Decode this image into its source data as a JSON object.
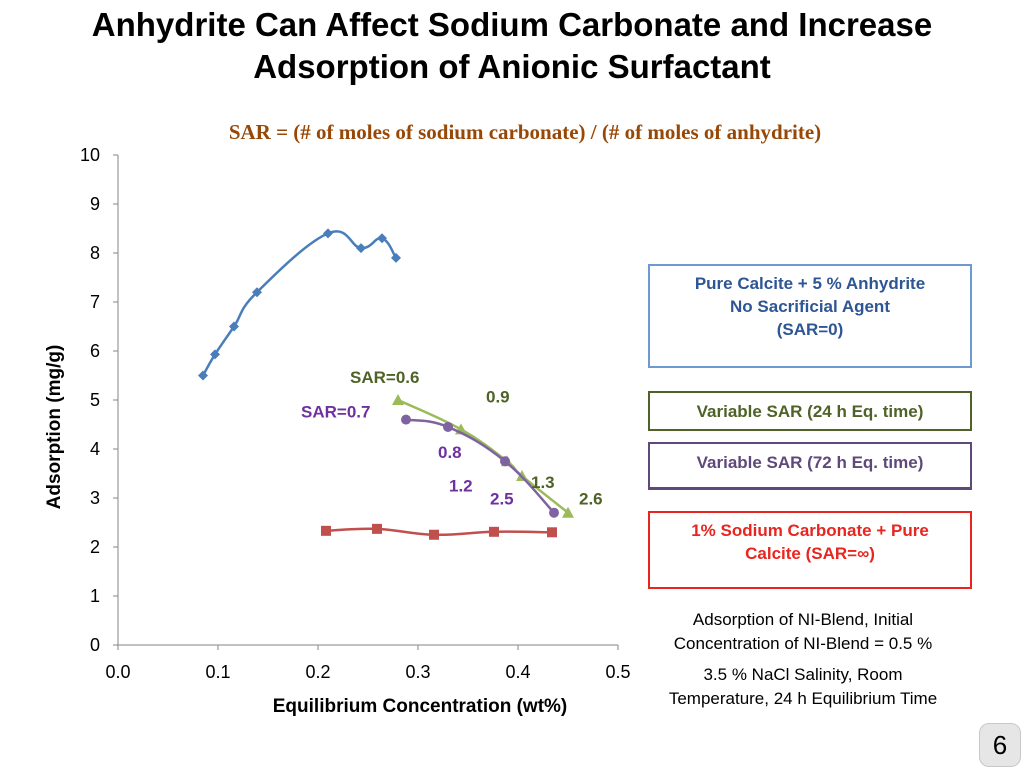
{
  "slide": {
    "title_line1": "Anhydrite Can Affect Sodium Carbonate and Increase",
    "title_line2": "Adsorption of Anionic Surfactant",
    "sar_formula": "SAR = (# of moles of sodium carbonate) / (# of moles of anhydrite)",
    "page_number": "6"
  },
  "legend": {
    "calcite_line1": "Pure Calcite + 5 % Anhydrite",
    "calcite_line2": "No Sacrificial Agent",
    "calcite_line3": "(SAR=0)",
    "variable_24h": "Variable SAR (24 h Eq. time)",
    "variable_72h": "Variable SAR (72 h Eq. time)",
    "na2co3_line1": "1% Sodium Carbonate + Pure",
    "na2co3_line2": "Calcite (SAR=∞)"
  },
  "notes": {
    "line1": "Adsorption of NI-Blend, Initial",
    "line2": "Concentration of NI-Blend = 0.5 %",
    "line3": "3.5 % NaCl Salinity, Room",
    "line4": "Temperature, 24 h Equilibrium Time"
  },
  "chart_data": {
    "type": "scatter",
    "xlabel": "Equilibrium Concentration (wt%)",
    "ylabel": "Adsorption (mg/g)",
    "xlim": [
      0,
      0.5
    ],
    "ylim": [
      0,
      10
    ],
    "x_ticks": [
      "0.0",
      "0.1",
      "0.2",
      "0.3",
      "0.4",
      "0.5"
    ],
    "y_ticks": [
      "0",
      "1",
      "2",
      "3",
      "4",
      "5",
      "6",
      "7",
      "8",
      "9",
      "10"
    ],
    "grid": false,
    "series": [
      {
        "name": "Pure Calcite + 5 % Anhydrite No Sacrificial Agent (SAR=0)",
        "color": "#4a7ebb",
        "marker": "diamond",
        "x": [
          0.085,
          0.097,
          0.116,
          0.139,
          0.21,
          0.243,
          0.264,
          0.278
        ],
        "y": [
          5.5,
          5.93,
          6.5,
          7.2,
          8.4,
          8.1,
          8.3,
          7.9
        ]
      },
      {
        "name": "Variable SAR (24 h Eq. time)",
        "color": "#9bbb59",
        "marker": "triangle",
        "x": [
          0.28,
          0.343,
          0.389,
          0.404,
          0.45
        ],
        "y": [
          5.0,
          4.4,
          3.75,
          3.45,
          2.7
        ]
      },
      {
        "name": "Variable SAR (72 h Eq. time)",
        "color": "#7f63a1",
        "marker": "circle",
        "x": [
          0.288,
          0.33,
          0.387,
          0.436
        ],
        "y": [
          4.6,
          4.45,
          3.75,
          2.7
        ]
      },
      {
        "name": "1% Sodium Carbonate + Pure Calcite (SAR=∞)",
        "color": "#c0504d",
        "marker": "square",
        "x": [
          0.208,
          0.259,
          0.316,
          0.376,
          0.434
        ],
        "y": [
          2.33,
          2.37,
          2.25,
          2.31,
          2.3
        ]
      }
    ],
    "annotations": [
      {
        "text": "SAR=0.6",
        "x": 0.28,
        "y": 5.0,
        "color": "#4f6228"
      },
      {
        "text": "SAR=0.7",
        "x": 0.288,
        "y": 4.6,
        "color": "#7030a0"
      },
      {
        "text": "0.9",
        "x": 0.343,
        "y": 4.4,
        "color": "#4f6228"
      },
      {
        "text": "0.8",
        "x": 0.33,
        "y": 4.45,
        "color": "#7030a0"
      },
      {
        "text": "1.3",
        "x": 0.404,
        "y": 3.45,
        "color": "#4f6228"
      },
      {
        "text": "1.2",
        "x": 0.389,
        "y": 3.75,
        "color": "#7030a0"
      },
      {
        "text": "2.5",
        "x": 0.436,
        "y": 2.7,
        "color": "#7030a0"
      },
      {
        "text": "2.6",
        "x": 0.45,
        "y": 2.7,
        "color": "#4f6228"
      }
    ]
  }
}
